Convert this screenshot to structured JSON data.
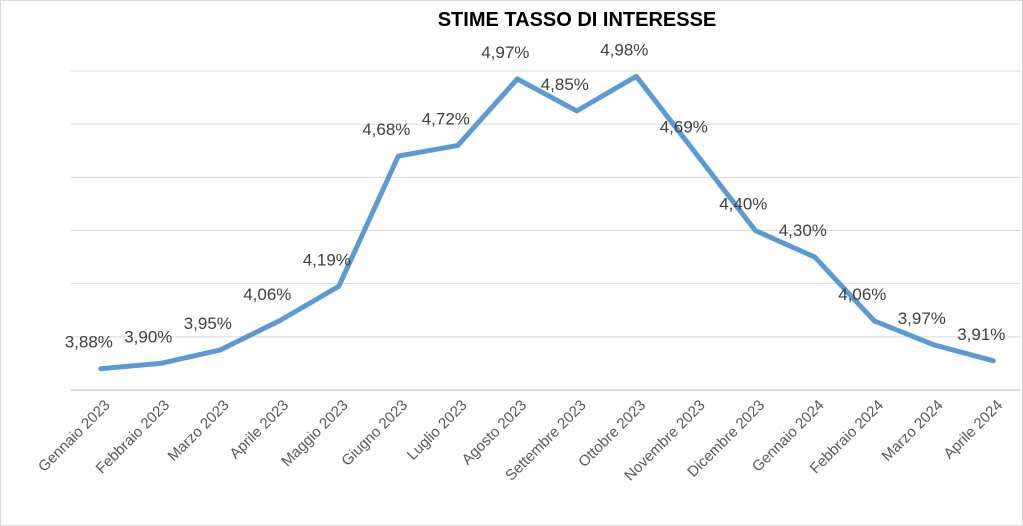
{
  "chart_data": {
    "type": "line",
    "title": "STIME TASSO DI INTERESSE",
    "xlabel": "",
    "ylabel": "",
    "categories": [
      "Gennaio 2023",
      "Febbraio 2023",
      "Marzo 2023",
      "Aprile 2023",
      "Maggio 2023",
      "Giugno 2023",
      "Luglio 2023",
      "Agosto 2023",
      "Settembre 2023",
      "Ottobre 2023",
      "Novembre 2023",
      "Dicembre 2023",
      "Gennaio 2024",
      "Febbraio 2024",
      "Marzo 2024",
      "Aprile 2024"
    ],
    "series": [
      {
        "values": [
          3.88,
          3.9,
          3.95,
          4.06,
          4.19,
          4.68,
          4.72,
          4.97,
          4.85,
          4.98,
          4.69,
          4.4,
          4.3,
          4.06,
          3.97,
          3.91
        ],
        "labels": [
          "3,88%",
          "3,90%",
          "3,95%",
          "4,06%",
          "4,19%",
          "4,68%",
          "4,72%",
          "4,97%",
          "4,85%",
          "4,98%",
          "4,69%",
          "4,40%",
          "4,30%",
          "4,06%",
          "3,97%",
          "3,91%"
        ],
        "color": "#5b9bd5"
      }
    ],
    "ylim": [
      3.8,
      5.0
    ],
    "grid": true,
    "y_tick_labels_visible": false,
    "legend": "none"
  }
}
